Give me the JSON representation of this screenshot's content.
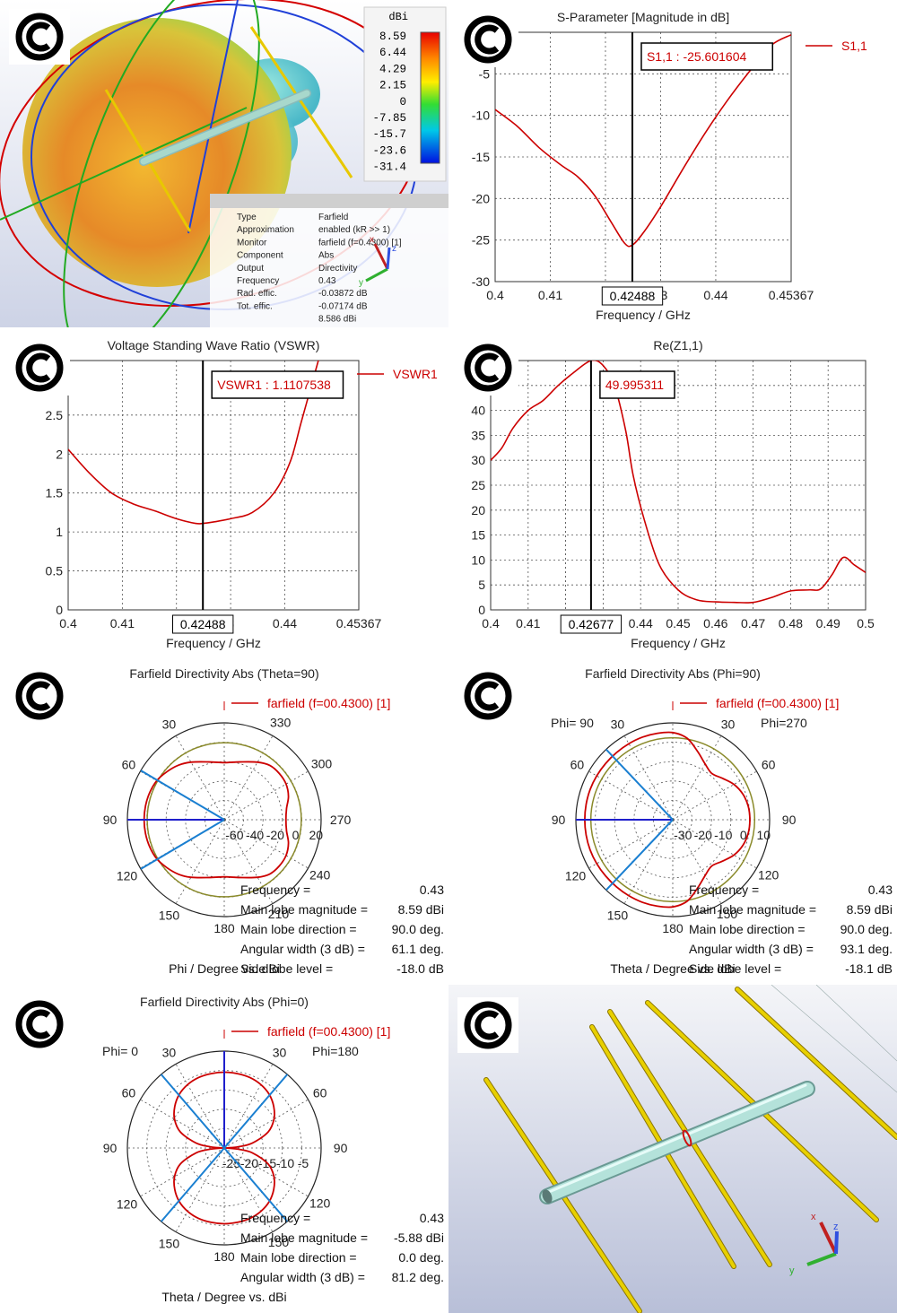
{
  "logo": {
    "glyph": "C"
  },
  "colors": {
    "trace": "#cc0000",
    "marker": "#000000",
    "beam": "#1a7fd1",
    "dir": "#1f1fcc",
    "ring3db": "#8a8a2a",
    "wire": "#d8c000",
    "boom": "#a8d8cc"
  },
  "farfield3d": {
    "unit": "dBi",
    "scale": [
      "8.59",
      "6.44",
      "4.29",
      "2.15",
      "0",
      "-7.85",
      "-15.7",
      "-23.6",
      "-31.4"
    ],
    "info": [
      {
        "k": "Type",
        "v": "Farfield"
      },
      {
        "k": "Approximation",
        "v": "enabled (kR >> 1)"
      },
      {
        "k": "Monitor",
        "v": "farfield (f=0.4300) [1]"
      },
      {
        "k": "Component",
        "v": "Abs"
      },
      {
        "k": "Output",
        "v": "Directivity"
      },
      {
        "k": "Frequency",
        "v": "0.43"
      },
      {
        "k": "Rad. effic.",
        "v": "-0.03872 dB"
      },
      {
        "k": "Tot. effic.",
        "v": "-0.07174 dB"
      },
      {
        "k": "",
        "v": "8.586 dBi"
      }
    ],
    "axes": {
      "x": "x",
      "y": "y",
      "z": "z"
    }
  },
  "chart_data": [
    {
      "id": "s11",
      "type": "line",
      "title": "S-Parameter [Magnitude in dB]",
      "xlabel": "Frequency / GHz",
      "ylabel": "",
      "xlim": [
        0.4,
        0.45367
      ],
      "ylim": [
        -30,
        0
      ],
      "x_ticks": [
        "0.4",
        "0.41",
        "0",
        "43",
        "0.44",
        "0.45367"
      ],
      "x_tick_values": [
        0.4,
        0.41,
        0.42,
        0.43,
        0.44,
        0.45367
      ],
      "y_ticks": [
        "-5",
        "-10",
        "-15",
        "-20",
        "-25",
        "-30"
      ],
      "y_tick_values": [
        -5,
        -10,
        -15,
        -20,
        -25,
        -30
      ],
      "grid": true,
      "legend": "top-right",
      "series": [
        {
          "name": "S1,1",
          "x": [
            0.4,
            0.404,
            0.408,
            0.412,
            0.415,
            0.418,
            0.421,
            0.4235,
            0.4249,
            0.427,
            0.43,
            0.434,
            0.438,
            0.442,
            0.446,
            0.45,
            0.45367
          ],
          "y": [
            -9.3,
            -11.3,
            -13.9,
            -16.0,
            -17.4,
            -19.6,
            -22.8,
            -25.4,
            -25.6,
            -24.0,
            -21.0,
            -16.5,
            -12.2,
            -8.3,
            -4.8,
            -1.6,
            -0.3
          ]
        }
      ],
      "marker": {
        "x": 0.42488,
        "x_label": "0.42488",
        "label": "S1,1 : -25.601604"
      }
    },
    {
      "id": "vswr",
      "type": "line",
      "title": "Voltage Standing Wave Ratio (VSWR)",
      "xlabel": "Frequency / GHz",
      "ylabel": "",
      "xlim": [
        0.4,
        0.45367
      ],
      "ylim": [
        0,
        3.2
      ],
      "x_ticks": [
        "0.4",
        "0.41",
        "0",
        "3",
        "0.44",
        "0.45367"
      ],
      "x_tick_values": [
        0.4,
        0.41,
        0.42,
        0.43,
        0.44,
        0.45367
      ],
      "y_ticks": [
        "0",
        "0.5",
        "1",
        "1.5",
        "2",
        "2.5"
      ],
      "y_tick_values": [
        0,
        0.5,
        1,
        1.5,
        2,
        2.5
      ],
      "grid": true,
      "legend": "top-right",
      "series": [
        {
          "name": "VSWR1",
          "x": [
            0.4,
            0.404,
            0.408,
            0.412,
            0.416,
            0.42,
            0.4235,
            0.4249,
            0.427,
            0.43,
            0.434,
            0.438,
            0.441,
            0.443,
            0.445,
            0.447
          ],
          "y": [
            2.06,
            1.75,
            1.5,
            1.36,
            1.27,
            1.17,
            1.11,
            1.11,
            1.13,
            1.17,
            1.25,
            1.5,
            1.9,
            2.4,
            2.9,
            3.4
          ]
        }
      ],
      "marker": {
        "x": 0.42488,
        "x_label": "0.42488",
        "label": "VSWR1 : 1.1107538"
      }
    },
    {
      "id": "rez",
      "type": "line",
      "title": "Re(Z1,1)",
      "xlabel": "Frequency / GHz",
      "ylabel": "",
      "xlim": [
        0.4,
        0.5
      ],
      "ylim": [
        0,
        50
      ],
      "x_ticks": [
        "0.4",
        "0.41",
        "0",
        "0.44",
        "0.45",
        "0.46",
        "0.47",
        "0.48",
        "0.49",
        "0.5"
      ],
      "x_tick_values": [
        0.4,
        0.41,
        0.42,
        0.44,
        0.45,
        0.46,
        0.47,
        0.48,
        0.49,
        0.5
      ],
      "y_ticks": [
        "0",
        "5",
        "10",
        "15",
        "20",
        "25",
        "30",
        "35",
        "40",
        "45"
      ],
      "y_tick_values": [
        0,
        5,
        10,
        15,
        20,
        25,
        30,
        35,
        40,
        45
      ],
      "grid": true,
      "legend": "none",
      "series": [
        {
          "name": "",
          "x": [
            0.4,
            0.403,
            0.406,
            0.41,
            0.414,
            0.418,
            0.422,
            0.4268,
            0.43,
            0.433,
            0.436,
            0.438,
            0.441,
            0.445,
            0.45,
            0.455,
            0.46,
            0.465,
            0.47,
            0.475,
            0.48,
            0.485,
            0.488,
            0.491,
            0.494,
            0.497,
            0.5
          ],
          "y": [
            30,
            32.5,
            36.5,
            40,
            42,
            45,
            47.5,
            50,
            49,
            45,
            36,
            27,
            18,
            9,
            4,
            2,
            1.6,
            1.5,
            1.5,
            2.5,
            3.8,
            4,
            4.2,
            7,
            10.5,
            9,
            7.5
          ]
        }
      ],
      "marker": {
        "x": 0.42677,
        "x_label": "0.42677",
        "label": "49.995311"
      }
    }
  ],
  "polars": [
    {
      "id": "theta90",
      "title": "Farfield Directivity Abs (Theta=90)",
      "legend": "farfield (f=00.4300) [1]",
      "angle_labels": [
        {
          "t": "30",
          "a": 30,
          "rf": 1.14
        },
        {
          "t": "60",
          "a": 60,
          "rf": 1.14
        },
        {
          "t": "90",
          "a": 90,
          "rf": 1.18
        },
        {
          "t": "120",
          "a": 120,
          "rf": 1.16
        },
        {
          "t": "150",
          "a": 150,
          "rf": 1.14
        },
        {
          "t": "180",
          "a": 180,
          "rf": 1.12
        },
        {
          "t": "330",
          "a": -30,
          "rf": 1.16
        },
        {
          "t": "300",
          "a": -60,
          "rf": 1.16
        },
        {
          "t": "270",
          "a": -90,
          "rf": 1.2
        },
        {
          "t": "240",
          "a": -120,
          "rf": 1.14
        },
        {
          "t": "210",
          "a": -150,
          "rf": 1.12
        }
      ],
      "side_labels": [],
      "r_ticks": [
        "-60",
        "-40",
        "-20",
        "0",
        "20"
      ],
      "r_tick_values": [
        -60,
        -40,
        -20,
        0,
        20
      ],
      "r_range": [
        -70,
        25
      ],
      "pattern_db": [
        [
          0,
          -14
        ],
        [
          15,
          -11.3
        ],
        [
          30,
          -4.8
        ],
        [
          40,
          -0.2
        ],
        [
          50,
          3.3
        ],
        [
          60,
          6.5
        ],
        [
          70,
          7.8
        ],
        [
          80,
          8.4
        ],
        [
          90,
          8.59
        ],
        [
          100,
          8.4
        ],
        [
          110,
          7.8
        ],
        [
          120,
          6.5
        ],
        [
          130,
          3.3
        ],
        [
          140,
          -0.2
        ],
        [
          150,
          -4.8
        ],
        [
          165,
          -11.3
        ],
        [
          180,
          -14
        ],
        [
          195,
          -11.3
        ],
        [
          210,
          -4.8
        ],
        [
          220,
          -0.5
        ],
        [
          230,
          0.5
        ],
        [
          240,
          0
        ],
        [
          250,
          -3
        ],
        [
          260,
          -8
        ],
        [
          270,
          -9.5
        ],
        [
          280,
          -8
        ],
        [
          290,
          -3
        ],
        [
          300,
          0
        ],
        [
          310,
          0.5
        ],
        [
          320,
          -0.5
        ],
        [
          330,
          -4.8
        ],
        [
          345,
          -11.3
        ],
        [
          360,
          -14
        ]
      ],
      "beam_center": 90,
      "beam_width": 61.1,
      "ring_db": 5.59,
      "stats": [
        {
          "k": "Frequency =",
          "v": "0.43"
        },
        {
          "k": "Main lobe magnitude =",
          "v": "8.59 dBi"
        },
        {
          "k": "Main lobe direction =",
          "v": "90.0 deg."
        },
        {
          "k": "Angular width (3 dB) =",
          "v": "61.1 deg."
        },
        {
          "k": "Side lobe level =",
          "v": "-18.0 dB"
        }
      ],
      "axis_label": "Phi / Degree vs. dBi"
    },
    {
      "id": "phi90",
      "title": "Farfield Directivity Abs (Phi=90)",
      "legend": "farfield (f=00.4300) [1]",
      "angle_labels": [
        {
          "t": "30",
          "a": 30,
          "rf": 1.14
        },
        {
          "t": "60",
          "a": 60,
          "rf": 1.14
        },
        {
          "t": "90",
          "a": 90,
          "rf": 1.18
        },
        {
          "t": "120",
          "a": 120,
          "rf": 1.16
        },
        {
          "t": "150",
          "a": 150,
          "rf": 1.14
        },
        {
          "t": "180",
          "a": 180,
          "rf": 1.12
        },
        {
          "t": "30",
          "a": -30,
          "rf": 1.14
        },
        {
          "t": "60",
          "a": -60,
          "rf": 1.14
        },
        {
          "t": "90",
          "a": -90,
          "rf": 1.2
        },
        {
          "t": "120",
          "a": -120,
          "rf": 1.14
        },
        {
          "t": "150",
          "a": -150,
          "rf": 1.12
        }
      ],
      "side_labels": [
        "Phi= 90",
        "Phi=270"
      ],
      "r_ticks": [
        "-30",
        "-20",
        "-10",
        "0",
        "10"
      ],
      "r_tick_values": [
        -30,
        -20,
        -10,
        0,
        10
      ],
      "r_range": [
        -35,
        13
      ],
      "pattern_db": [
        [
          0,
          8.2
        ],
        [
          10,
          8.5
        ],
        [
          20,
          8.59
        ],
        [
          30,
          8.5
        ],
        [
          40,
          8.4
        ],
        [
          50,
          8.4
        ],
        [
          60,
          8.5
        ],
        [
          70,
          8.59
        ],
        [
          80,
          8.59
        ],
        [
          90,
          8.59
        ],
        [
          100,
          8.59
        ],
        [
          110,
          8.59
        ],
        [
          120,
          8.5
        ],
        [
          130,
          8.4
        ],
        [
          140,
          8.4
        ],
        [
          150,
          8.5
        ],
        [
          160,
          8.59
        ],
        [
          170,
          8.5
        ],
        [
          180,
          8.2
        ],
        [
          190,
          6
        ],
        [
          200,
          1
        ],
        [
          210,
          -3
        ],
        [
          220,
          -5
        ],
        [
          230,
          -3
        ],
        [
          240,
          0
        ],
        [
          250,
          2
        ],
        [
          260,
          3
        ],
        [
          270,
          3.2
        ],
        [
          280,
          3
        ],
        [
          290,
          2
        ],
        [
          300,
          0
        ],
        [
          310,
          -3
        ],
        [
          320,
          -5
        ],
        [
          330,
          -3
        ],
        [
          340,
          1
        ],
        [
          350,
          6
        ],
        [
          360,
          8.2
        ]
      ],
      "beam_center": 90,
      "beam_width": 93.1,
      "ring_db": 5.59,
      "stats": [
        {
          "k": "Frequency =",
          "v": "0.43"
        },
        {
          "k": "Main lobe magnitude =",
          "v": "8.59 dBi"
        },
        {
          "k": "Main lobe direction =",
          "v": "90.0 deg."
        },
        {
          "k": "Angular width (3 dB) =",
          "v": "93.1 deg."
        },
        {
          "k": "Side lobe level =",
          "v": "-18.1 dB"
        }
      ],
      "axis_label": "Theta / Degree vs. dBi"
    },
    {
      "id": "phi0",
      "title": "Farfield Directivity Abs (Phi=0)",
      "legend": "farfield (f=00.4300) [1]",
      "angle_labels": [
        {
          "t": "30",
          "a": 30,
          "rf": 1.14
        },
        {
          "t": "60",
          "a": 60,
          "rf": 1.14
        },
        {
          "t": "90",
          "a": 90,
          "rf": 1.18
        },
        {
          "t": "120",
          "a": 120,
          "rf": 1.16
        },
        {
          "t": "150",
          "a": 150,
          "rf": 1.14
        },
        {
          "t": "180",
          "a": 180,
          "rf": 1.12
        },
        {
          "t": "30",
          "a": -30,
          "rf": 1.14
        },
        {
          "t": "60",
          "a": -60,
          "rf": 1.14
        },
        {
          "t": "90",
          "a": -90,
          "rf": 1.2
        },
        {
          "t": "120",
          "a": -120,
          "rf": 1.14
        },
        {
          "t": "150",
          "a": -150,
          "rf": 1.12
        }
      ],
      "side_labels": [
        "Phi=  0",
        "Phi=180"
      ],
      "r_ticks": [
        "-25",
        "-20",
        "-15",
        "-10",
        "-5"
      ],
      "r_tick_values": [
        -25,
        -20,
        -15,
        -10,
        -5
      ],
      "r_range": [
        -27,
        0
      ],
      "pattern_db": [
        [
          0,
          -5.88
        ],
        [
          10,
          -5.95
        ],
        [
          20,
          -6.1
        ],
        [
          30,
          -6.6
        ],
        [
          40,
          -7.5
        ],
        [
          50,
          -9
        ],
        [
          60,
          -11
        ],
        [
          70,
          -14
        ],
        [
          80,
          -19
        ],
        [
          85,
          -23
        ],
        [
          88,
          -26
        ],
        [
          90,
          -27
        ],
        [
          92,
          -26
        ],
        [
          95,
          -23
        ],
        [
          100,
          -19
        ],
        [
          110,
          -14
        ],
        [
          120,
          -11
        ],
        [
          130,
          -9
        ],
        [
          140,
          -7.5
        ],
        [
          150,
          -6.6
        ],
        [
          160,
          -6.1
        ],
        [
          170,
          -5.95
        ],
        [
          180,
          -5.88
        ],
        [
          190,
          -5.95
        ],
        [
          200,
          -6.1
        ],
        [
          210,
          -6.6
        ],
        [
          220,
          -7.5
        ],
        [
          230,
          -9
        ],
        [
          240,
          -11
        ],
        [
          250,
          -14
        ],
        [
          260,
          -19
        ],
        [
          265,
          -23
        ],
        [
          268,
          -26
        ],
        [
          270,
          -27
        ],
        [
          272,
          -26
        ],
        [
          275,
          -23
        ],
        [
          280,
          -19
        ],
        [
          290,
          -14
        ],
        [
          300,
          -11
        ],
        [
          310,
          -9
        ],
        [
          320,
          -7.5
        ],
        [
          330,
          -6.6
        ],
        [
          340,
          -6.1
        ],
        [
          350,
          -5.95
        ],
        [
          360,
          -5.88
        ]
      ],
      "beam_center": 0,
      "beam_width": 81.2,
      "ring_db": null,
      "stats": [
        {
          "k": "Frequency =",
          "v": "0.43"
        },
        {
          "k": "Main lobe magnitude =",
          "v": "-5.88 dBi"
        },
        {
          "k": "Main lobe direction =",
          "v": "0.0 deg."
        },
        {
          "k": "Angular width (3 dB) =",
          "v": "81.2 deg."
        }
      ],
      "axis_label": "Theta / Degree vs. dBi"
    }
  ],
  "model3d": {
    "axes": {
      "x": "x",
      "y": "y",
      "z": "z"
    }
  }
}
